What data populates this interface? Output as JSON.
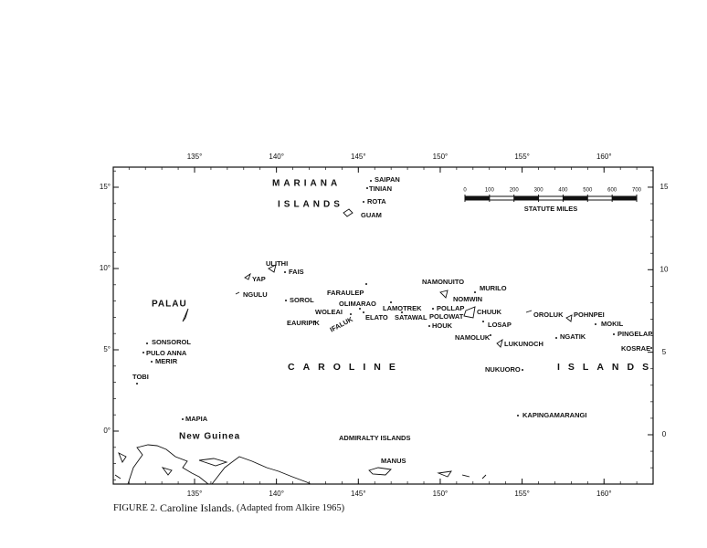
{
  "map": {
    "labels": [
      "MARIANA",
      "ISLANDS",
      "SAIPAN",
      "TINIAN",
      "ROTA",
      "GUAM",
      "ULITHI",
      "FAIS",
      "YAP",
      "NGULU",
      "PALAU",
      "SOROL",
      "FARAULEP",
      "NAMONUITO",
      "MURILO",
      "NOMWIN",
      "OLIMARAO",
      "WOLEAI",
      "LAMOTREK",
      "POLLAP",
      "CHUUK",
      "OROLUK",
      "POHNPEI",
      "EAURIPIK",
      "IFALUK",
      "ELATO",
      "SATAWAL",
      "POLOWAT",
      "LOSAP",
      "HOUK",
      "MOKIL",
      "SONSOROL",
      "NAMOLUK",
      "NGATIK",
      "PINGELAP",
      "PULO ANNA",
      "LUKUNOCH",
      "KOSRAE",
      "MERIR",
      "CAROLINE",
      "ISLANDS",
      "NUKUORO",
      "TOBI",
      "MAPIA",
      "KAPINGAMARANGI",
      "New Guinea",
      "ADMIRALTY ISLANDS",
      "MANUS"
    ],
    "lon_ticks": [
      {
        "value": 135,
        "label": "135°"
      },
      {
        "value": 140,
        "label": "140°"
      },
      {
        "value": 145,
        "label": "145°"
      },
      {
        "value": 150,
        "label": "150°"
      },
      {
        "value": 155,
        "label": "155°"
      },
      {
        "value": 160,
        "label": "160°"
      }
    ],
    "lat_ticks_left": [
      {
        "value": 15,
        "label": "15°"
      },
      {
        "value": 10,
        "label": "10°"
      },
      {
        "value": 5,
        "label": "5°"
      },
      {
        "value": 0,
        "label": "0°"
      }
    ],
    "lat_ticks_right": [
      15,
      10,
      5,
      0
    ],
    "scale_bar": {
      "ticks": [
        0,
        100,
        200,
        300,
        400,
        500,
        600,
        700
      ],
      "unit": "STATUTE MILES"
    }
  },
  "caption": {
    "figure": "FIGURE 2.",
    "title": "Caroline Islands.",
    "source": "(Adapted from Alkire 1965)"
  }
}
